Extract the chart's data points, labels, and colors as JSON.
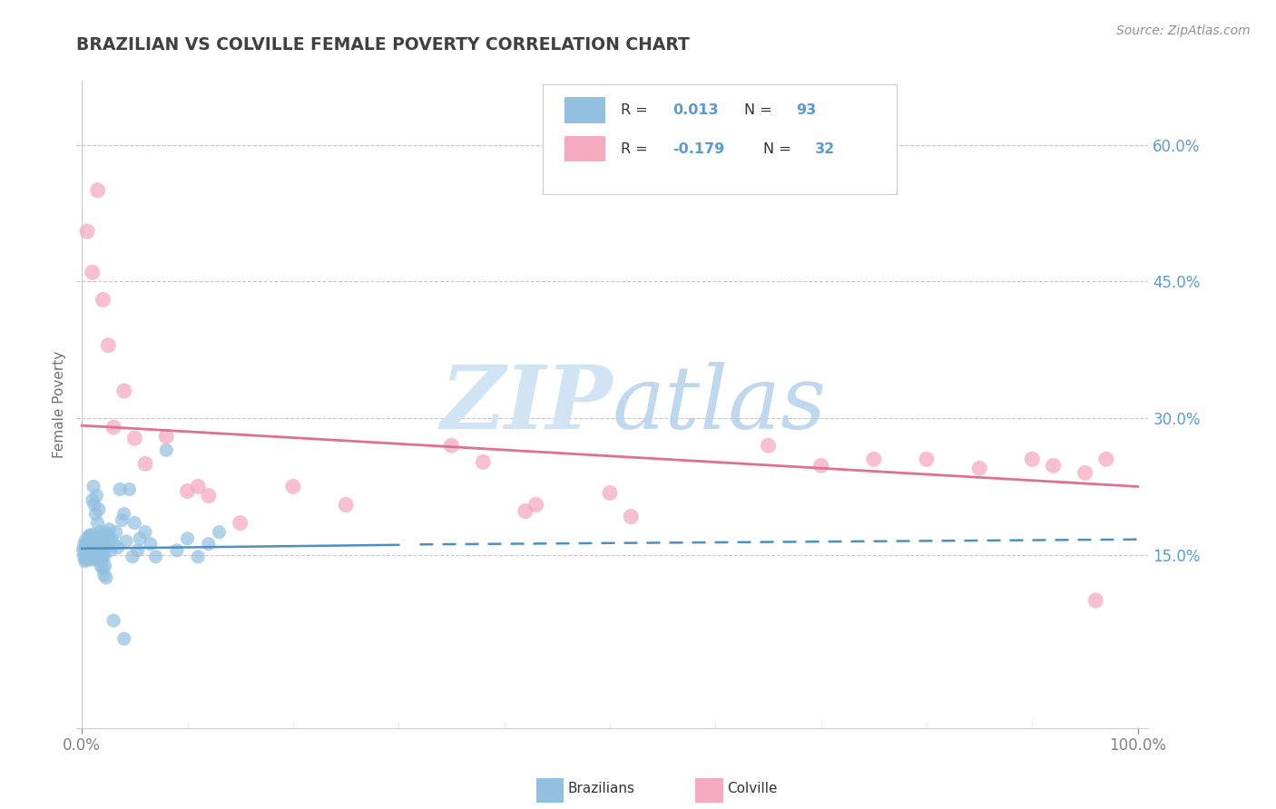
{
  "title": "BRAZILIAN VS COLVILLE FEMALE POVERTY CORRELATION CHART",
  "source": "Source: ZipAtlas.com",
  "ylabel": "Female Poverty",
  "xlim": [
    -0.005,
    1.01
  ],
  "ylim": [
    -0.04,
    0.67
  ],
  "yticks": [
    0.15,
    0.3,
    0.45,
    0.6
  ],
  "ytick_labels": [
    "15.0%",
    "30.0%",
    "45.0%",
    "60.0%"
  ],
  "xticks": [
    0.0,
    1.0
  ],
  "xtick_labels": [
    "0.0%",
    "100.0%"
  ],
  "brazilian_R": 0.013,
  "brazilian_N": 93,
  "colville_R": -0.179,
  "colville_N": 32,
  "blue_color": "#92C0E0",
  "pink_color": "#F5AABF",
  "blue_line_color": "#4A90C4",
  "pink_line_color": "#E07090",
  "watermark_zip": "ZIP",
  "watermark_atlas": "atlas",
  "watermark_color": "#D0E4F4",
  "title_color": "#404040",
  "axis_label_color": "#5B9BD5",
  "background_color": "#FFFFFF",
  "grid_color": "#C8C8C8",
  "brazilians_x": [
    0.001,
    0.002,
    0.002,
    0.003,
    0.003,
    0.003,
    0.004,
    0.004,
    0.004,
    0.005,
    0.005,
    0.005,
    0.006,
    0.006,
    0.007,
    0.007,
    0.007,
    0.008,
    0.008,
    0.009,
    0.009,
    0.01,
    0.01,
    0.01,
    0.011,
    0.011,
    0.012,
    0.012,
    0.013,
    0.013,
    0.014,
    0.014,
    0.015,
    0.015,
    0.015,
    0.016,
    0.016,
    0.017,
    0.017,
    0.018,
    0.018,
    0.019,
    0.019,
    0.02,
    0.02,
    0.021,
    0.021,
    0.022,
    0.023,
    0.024,
    0.025,
    0.026,
    0.027,
    0.028,
    0.03,
    0.032,
    0.034,
    0.036,
    0.038,
    0.04,
    0.042,
    0.045,
    0.048,
    0.05,
    0.053,
    0.055,
    0.06,
    0.065,
    0.07,
    0.08,
    0.09,
    0.1,
    0.11,
    0.12,
    0.13,
    0.01,
    0.011,
    0.012,
    0.013,
    0.014,
    0.015,
    0.016,
    0.006,
    0.007,
    0.008,
    0.018,
    0.019,
    0.02,
    0.021,
    0.022,
    0.023,
    0.03,
    0.04
  ],
  "brazilians_y": [
    0.155,
    0.148,
    0.16,
    0.143,
    0.155,
    0.165,
    0.15,
    0.158,
    0.145,
    0.155,
    0.162,
    0.148,
    0.155,
    0.17,
    0.145,
    0.158,
    0.165,
    0.148,
    0.172,
    0.152,
    0.168,
    0.145,
    0.158,
    0.172,
    0.148,
    0.165,
    0.15,
    0.168,
    0.145,
    0.16,
    0.155,
    0.17,
    0.148,
    0.158,
    0.168,
    0.152,
    0.165,
    0.148,
    0.175,
    0.155,
    0.162,
    0.148,
    0.165,
    0.152,
    0.17,
    0.148,
    0.162,
    0.175,
    0.158,
    0.172,
    0.165,
    0.178,
    0.155,
    0.168,
    0.162,
    0.175,
    0.158,
    0.222,
    0.188,
    0.195,
    0.165,
    0.222,
    0.148,
    0.185,
    0.155,
    0.168,
    0.175,
    0.162,
    0.148,
    0.265,
    0.155,
    0.168,
    0.148,
    0.162,
    0.175,
    0.21,
    0.225,
    0.205,
    0.195,
    0.215,
    0.185,
    0.2,
    0.148,
    0.155,
    0.162,
    0.138,
    0.145,
    0.135,
    0.128,
    0.138,
    0.125,
    0.078,
    0.058
  ],
  "colville_x": [
    0.005,
    0.01,
    0.015,
    0.02,
    0.025,
    0.03,
    0.04,
    0.05,
    0.06,
    0.08,
    0.1,
    0.11,
    0.12,
    0.15,
    0.2,
    0.25,
    0.35,
    0.38,
    0.42,
    0.43,
    0.5,
    0.52,
    0.65,
    0.7,
    0.75,
    0.8,
    0.85,
    0.9,
    0.92,
    0.95,
    0.96,
    0.97
  ],
  "colville_y": [
    0.505,
    0.46,
    0.55,
    0.43,
    0.38,
    0.29,
    0.33,
    0.278,
    0.25,
    0.28,
    0.22,
    0.225,
    0.215,
    0.185,
    0.225,
    0.205,
    0.27,
    0.252,
    0.198,
    0.205,
    0.218,
    0.192,
    0.27,
    0.248,
    0.255,
    0.255,
    0.245,
    0.255,
    0.248,
    0.24,
    0.1,
    0.255
  ],
  "pink_line_start_x": 0.0,
  "pink_line_start_y": 0.292,
  "pink_line_end_x": 1.0,
  "pink_line_end_y": 0.225,
  "blue_line_solid_start_x": 0.0,
  "blue_line_solid_start_y": 0.157,
  "blue_line_solid_end_x": 0.3,
  "blue_line_solid_end_y": 0.161,
  "blue_line_dashed_start_x": 0.32,
  "blue_line_dashed_start_y": 0.1615,
  "blue_line_dashed_end_x": 1.0,
  "blue_line_dashed_end_y": 0.167
}
